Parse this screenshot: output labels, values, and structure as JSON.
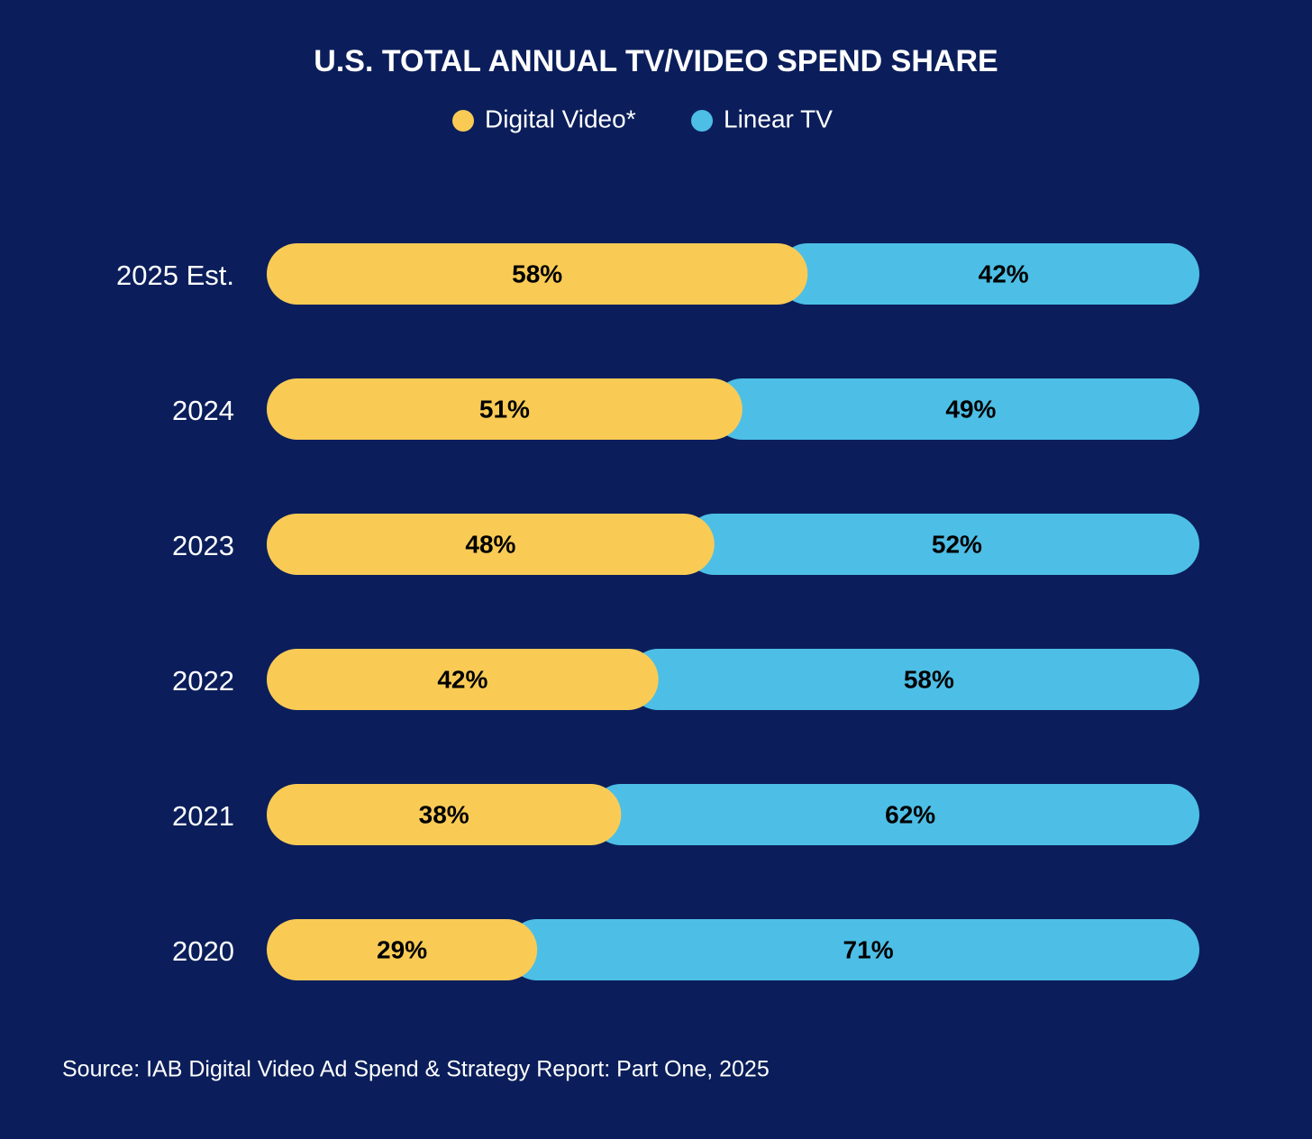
{
  "chart_data": {
    "type": "stacked-bar",
    "orientation": "horizontal",
    "title": "U.S. TOTAL ANNUAL TV/VIDEO SPEND SHARE",
    "categories": [
      "2025 Est.",
      "2024",
      "2023",
      "2022",
      "2021",
      "2020"
    ],
    "series": [
      {
        "name": "Digital Video*",
        "color": "#f9cb55",
        "values": [
          58,
          51,
          48,
          42,
          38,
          29
        ],
        "value_labels": [
          "58%",
          "51%",
          "48%",
          "42%",
          "38%",
          "29%"
        ]
      },
      {
        "name": "Linear TV",
        "color": "#4dbfe6",
        "values": [
          42,
          49,
          52,
          58,
          62,
          71
        ],
        "value_labels": [
          "42%",
          "49%",
          "52%",
          "58%",
          "62%",
          "71%"
        ]
      }
    ],
    "source": "Source: IAB Digital Video Ad Spend & Strategy Report: Part One, 2025"
  }
}
